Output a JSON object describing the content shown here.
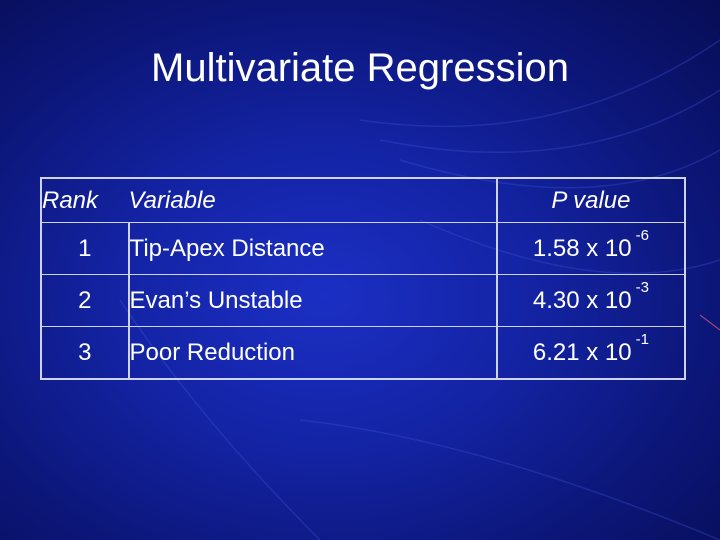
{
  "slide": {
    "title": "Multivariate Regression"
  },
  "table": {
    "headers": {
      "rank": "Rank",
      "variable": "Variable",
      "p_value": "P value"
    },
    "rows": [
      {
        "rank": "1",
        "variable": "Tip-Apex Distance",
        "p_mantissa": "1.58 x 10",
        "p_exponent": "-6"
      },
      {
        "rank": "2",
        "variable": "Evan’s Unstable",
        "p_mantissa": "4.30 x 10",
        "p_exponent": "-3"
      },
      {
        "rank": "3",
        "variable": "Poor Reduction",
        "p_mantissa": "6.21 x 10",
        "p_exponent": "-1"
      }
    ]
  },
  "colors": {
    "background_center": "#1b2fc4",
    "background_edge": "#070d55",
    "text": "#ffffff",
    "grid_lines": "#cfd3e6"
  }
}
